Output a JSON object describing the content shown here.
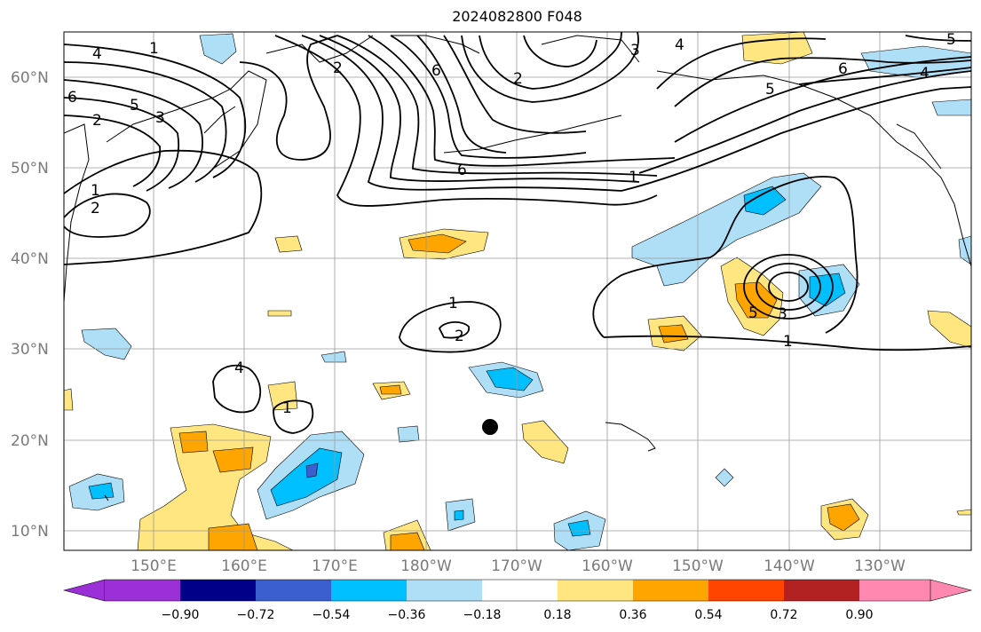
{
  "title": "2024082800 F048",
  "lat_labels": [
    "60°N",
    "50°N",
    "40°N",
    "30°N",
    "20°N",
    "10°N"
  ],
  "lon_labels": [
    "150°E",
    "160°E",
    "170°E",
    "180°W",
    "170°W",
    "160°W",
    "150°W",
    "140°W",
    "130°W"
  ],
  "colorbar": {
    "ticks": [
      "−0.90",
      "−0.72",
      "−0.54",
      "−0.36",
      "−0.18",
      "0.18",
      "0.36",
      "0.54",
      "0.72",
      "0.90"
    ],
    "colors": [
      "#9b30d9",
      "#000088",
      "#3c5fd0",
      "#00bfff",
      "#aedff7",
      "#ffffff",
      "#ffe680",
      "#ffa500",
      "#ff4500",
      "#b22222",
      "#ff88b0"
    ]
  },
  "contour_labels": [
    "1",
    "4",
    "6",
    "5",
    "2",
    "3",
    "6",
    "2",
    "3",
    "4",
    "5",
    "1",
    "2",
    "6",
    "1",
    "2",
    "3",
    "1",
    "1",
    "2",
    "4",
    "5",
    "6",
    "5",
    "4",
    "1"
  ],
  "marker": "storm-position"
}
